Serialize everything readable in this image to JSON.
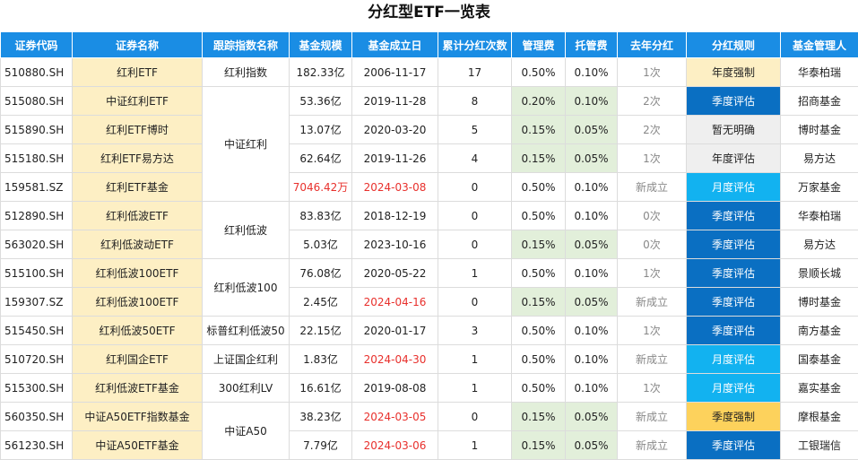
{
  "title": "分红型ETF一览表",
  "table": {
    "columns": [
      "证券代码",
      "证券名称",
      "跟踪指数名称",
      "基金规模",
      "基金成立日",
      "累计分红次数",
      "管理费",
      "托管费",
      "去年分红",
      "分红规则",
      "基金管理人"
    ],
    "rows": [
      [
        "510880.SH",
        "红利ETF",
        "红利指数",
        "182.33亿",
        "2006-11-17",
        17,
        "0.50%",
        "0.10%",
        "1次",
        "年度强制",
        "华泰柏瑞"
      ],
      [
        "515080.SH",
        "中证红利ETF",
        "中证红利",
        "53.36亿",
        "2019-11-28",
        8,
        "0.20%",
        "0.10%",
        "2次",
        "季度评估",
        "招商基金"
      ],
      [
        "515890.SH",
        "红利ETF博时",
        null,
        "13.07亿",
        "2020-03-20",
        5,
        "0.15%",
        "0.05%",
        "2次",
        "暂无明确",
        "博时基金"
      ],
      [
        "515180.SH",
        "红利ETF易方达",
        null,
        "62.64亿",
        "2019-11-26",
        4,
        "0.15%",
        "0.05%",
        "1次",
        "年度评估",
        "易方达"
      ],
      [
        "159581.SZ",
        "红利ETF基金",
        null,
        "7046.42万",
        "2024-03-08",
        0,
        "0.50%",
        "0.10%",
        "新成立",
        "月度评估",
        "万家基金"
      ],
      [
        "512890.SH",
        "红利低波ETF",
        "红利低波",
        "83.83亿",
        "2018-12-19",
        0,
        "0.50%",
        "0.10%",
        "0次",
        "季度评估",
        "华泰柏瑞"
      ],
      [
        "563020.SH",
        "红利低波动ETF",
        null,
        "5.03亿",
        "2023-10-16",
        0,
        "0.15%",
        "0.05%",
        "0次",
        "季度评估",
        "易方达"
      ],
      [
        "515100.SH",
        "红利低波100ETF",
        "红利低波100",
        "76.08亿",
        "2020-05-22",
        1,
        "0.50%",
        "0.10%",
        "1次",
        "季度评估",
        "景顺长城"
      ],
      [
        "159307.SZ",
        "红利低波100ETF",
        null,
        "2.45亿",
        "2024-04-16",
        0,
        "0.15%",
        "0.05%",
        "新成立",
        "季度评估",
        "博时基金"
      ],
      [
        "515450.SH",
        "红利低波50ETF",
        "标普红利低波50",
        "22.15亿",
        "2020-01-17",
        3,
        "0.50%",
        "0.10%",
        "1次",
        "季度评估",
        "南方基金"
      ],
      [
        "510720.SH",
        "红利国企ETF",
        "上证国企红利",
        "1.83亿",
        "2024-04-30",
        1,
        "0.50%",
        "0.10%",
        "新成立",
        "月度评估",
        "国泰基金"
      ],
      [
        "515300.SH",
        "红利低波ETF基金",
        "300红利LV",
        "16.61亿",
        "2019-08-08",
        1,
        "0.50%",
        "0.10%",
        "1次",
        "月度评估",
        "嘉实基金"
      ],
      [
        "560350.SH",
        "中证A50ETF指数基金",
        "中证A50",
        "38.23亿",
        "2024-03-05",
        0,
        "0.15%",
        "0.05%",
        "新成立",
        "季度强制",
        "摩根基金"
      ],
      [
        "561230.SH",
        "中证A50ETF基金",
        null,
        "7.79亿",
        "2024-03-06",
        1,
        "0.15%",
        "0.05%",
        "新成立",
        "季度评估",
        "工银瑞信"
      ]
    ],
    "low_fee_rows": [
      1,
      2,
      3,
      6,
      8,
      12,
      13
    ],
    "red_cells": [
      [
        4,
        3
      ],
      [
        4,
        4
      ],
      [
        5,
        8
      ],
      [
        6,
        8
      ],
      [
        8,
        4
      ],
      [
        10,
        4
      ],
      [
        12,
        4
      ],
      [
        13,
        4
      ]
    ],
    "rule_styles": {
      "年度强制": [
        "#fdefc4",
        "#222"
      ],
      "季度评估": [
        "#0a6fc2",
        "#fff"
      ],
      "暂无明确": [
        "#efefef",
        "#222"
      ],
      "年度评估": [
        "#efefef",
        "#222"
      ],
      "月度评估": [
        "#12b2f0",
        "#fff"
      ],
      "季度强制": [
        "#fdd25c",
        "#222"
      ]
    }
  }
}
